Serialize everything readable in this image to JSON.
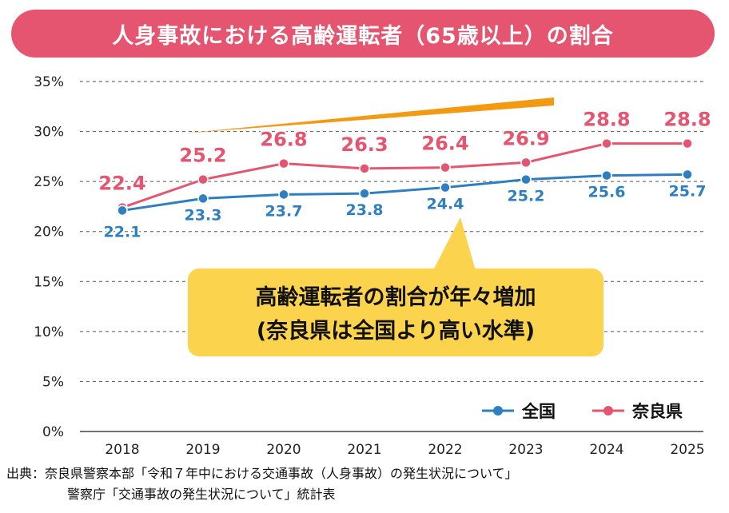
{
  "title": "人身事故における高齢運転者（65歳以上）の割合",
  "callout": {
    "line1": "高齢運転者の割合が年々増加",
    "line2": "(奈良県は全国より高い水準)"
  },
  "source": {
    "line1": "出典：奈良県警察本部「令和７年中における交通事故（人身事故）の発生状況について」",
    "line2": "警察庁「交通事故の発生状況について」統計表"
  },
  "colors": {
    "national": "#2e7fc1",
    "nara": "#e5556f",
    "arrow": "#f39a12",
    "callout_bg": "#fbd34d",
    "banner": "#e5556f"
  },
  "chart_data": {
    "type": "line",
    "categories": [
      "2018",
      "2019",
      "2020",
      "2021",
      "2022",
      "2023",
      "2024",
      "2025"
    ],
    "y_tick_labels": [
      "0%",
      "5%",
      "10%",
      "15%",
      "20%",
      "25%",
      "30%",
      "35%"
    ],
    "ylim": [
      0,
      35
    ],
    "grid": true,
    "legend_position": "bottom-right",
    "series": [
      {
        "name": "全国",
        "values": [
          22.1,
          23.3,
          23.7,
          23.8,
          24.4,
          25.2,
          25.6,
          25.7
        ]
      },
      {
        "name": "奈良県",
        "values": [
          22.4,
          25.2,
          26.8,
          26.3,
          26.4,
          26.9,
          28.8,
          28.8
        ]
      }
    ]
  }
}
